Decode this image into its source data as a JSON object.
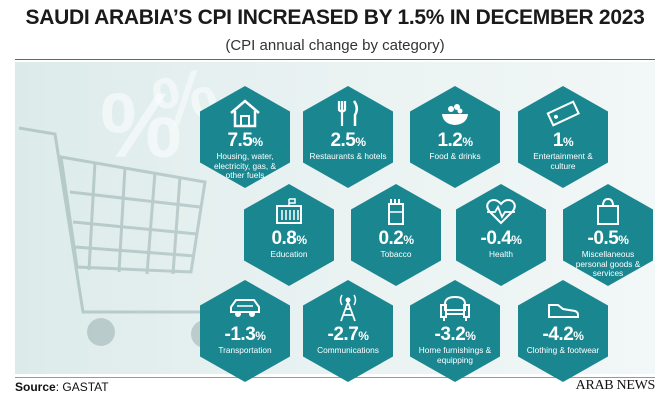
{
  "title": "SAUDI ARABIA’S CPI INCREASED BY 1.5% IN DECEMBER 2023",
  "subtitle": "(CPI annual change by category)",
  "source_label": "Source",
  "source_value": ": GASTAT",
  "brand": "ARAB NEWS",
  "colors": {
    "hex": "#1a8790",
    "background": "#e3efee",
    "text": "#1a1a1a"
  },
  "chart_data": {
    "type": "table",
    "title": "SAUDI ARABIA’S CPI INCREASED BY 1.5% IN DECEMBER 2023",
    "subtitle": "(CPI annual change by category)",
    "unit": "%",
    "categories": [
      {
        "label": "Housing, water, electricity, gas, & other fuels",
        "value": 7.5,
        "display": "7.5",
        "icon": "house-icon"
      },
      {
        "label": "Restaurants & hotels",
        "value": 2.5,
        "display": "2.5",
        "icon": "cutlery-icon"
      },
      {
        "label": "Food & drinks",
        "value": 1.2,
        "display": "1.2",
        "icon": "food-bowl-icon"
      },
      {
        "label": "Entertainment & culture",
        "value": 1,
        "display": "1",
        "icon": "ticket-icon"
      },
      {
        "label": "Education",
        "value": 0.8,
        "display": "0.8",
        "icon": "school-icon"
      },
      {
        "label": "Tobacco",
        "value": 0.2,
        "display": "0.2",
        "icon": "cigarette-pack-icon"
      },
      {
        "label": "Health",
        "value": -0.4,
        "display": "-0.4",
        "icon": "heartbeat-icon"
      },
      {
        "label": "Miscellaneous personal goods & services",
        "value": -0.5,
        "display": "-0.5",
        "icon": "shopping-bag-icon"
      },
      {
        "label": "Transportation",
        "value": -1.3,
        "display": "-1.3",
        "icon": "car-icon"
      },
      {
        "label": "Communications",
        "value": -2.7,
        "display": "-2.7",
        "icon": "antenna-icon"
      },
      {
        "label": "Home furnishings & equipping",
        "value": -3.2,
        "display": "-3.2",
        "icon": "armchair-icon"
      },
      {
        "label": "Clothing & footwear",
        "value": -4.2,
        "display": "-4.2",
        "icon": "shoe-icon"
      }
    ]
  }
}
